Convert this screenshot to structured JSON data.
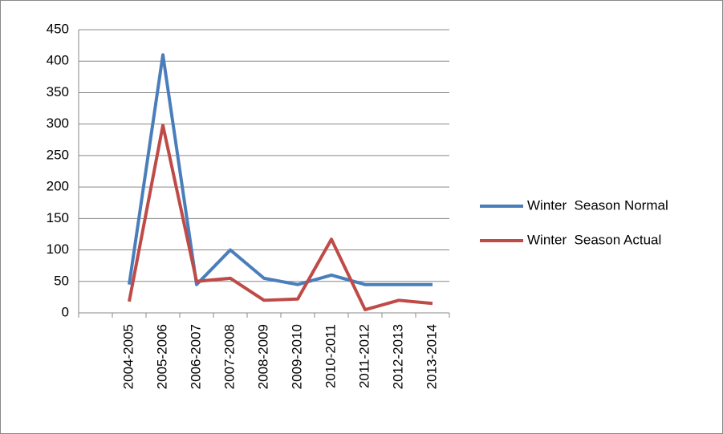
{
  "chart_data": {
    "type": "line",
    "categories": [
      null,
      "2004-2005",
      "2005-2006",
      "2006-2007",
      "2007-2008",
      "2008-2009",
      "2009-2010",
      "2010-2011",
      "2011-2012",
      "2012-2013",
      "2013-2014"
    ],
    "series": [
      {
        "name": "Winter  Season Normal",
        "color": "#4a7ebb",
        "values": [
          null,
          45,
          410,
          45,
          100,
          55,
          45,
          60,
          45,
          45,
          45
        ]
      },
      {
        "name": "Winter  Season Actual",
        "color": "#be4b48",
        "values": [
          null,
          18,
          298,
          50,
          55,
          20,
          22,
          117,
          5,
          20,
          15
        ]
      }
    ],
    "ylim": [
      0,
      450
    ],
    "yticks": [
      0,
      50,
      100,
      150,
      200,
      250,
      300,
      350,
      400,
      450
    ],
    "grid": true,
    "legend": "right"
  }
}
